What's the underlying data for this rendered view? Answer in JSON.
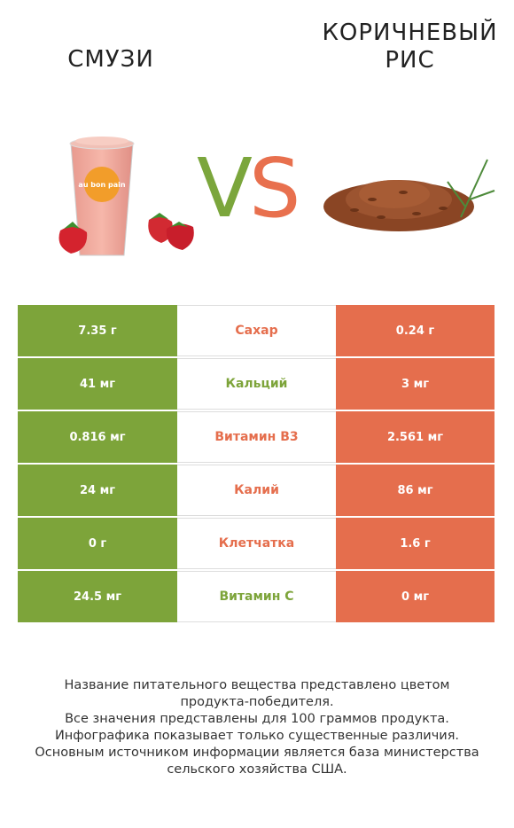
{
  "left_product": {
    "title": "СМУЗИ",
    "color": "#7da43a",
    "cup_label": "au bon pain"
  },
  "right_product": {
    "title_lines": [
      "КОРИЧНЕВЫЙ",
      "РИС"
    ],
    "color": "#e56e4d"
  },
  "vs": {
    "v": "V",
    "s": "S"
  },
  "rows": [
    {
      "left": "7.35 г",
      "nutrient": "Сахар",
      "right": "0.24 г",
      "winner": "right"
    },
    {
      "left": "41 мг",
      "nutrient": "Кальций",
      "right": "3 мг",
      "winner": "left"
    },
    {
      "left": "0.816 мг",
      "nutrient": "Витамин B3",
      "right": "2.561 мг",
      "winner": "right"
    },
    {
      "left": "24 мг",
      "nutrient": "Калий",
      "right": "86 мг",
      "winner": "right"
    },
    {
      "left": "0 г",
      "nutrient": "Клетчатка",
      "right": "1.6 г",
      "winner": "right"
    },
    {
      "left": "24.5 мг",
      "nutrient": "Витамин C",
      "right": "0 мг",
      "winner": "left"
    }
  ],
  "footnote": [
    "Название питательного вещества представлено цветом",
    "продукта-победителя.",
    "Все значения представлены для 100 граммов продукта.",
    "Инфографика показывает только существенные различия.",
    "Основным источником информации является база министерства",
    "сельского хозяйства США."
  ]
}
